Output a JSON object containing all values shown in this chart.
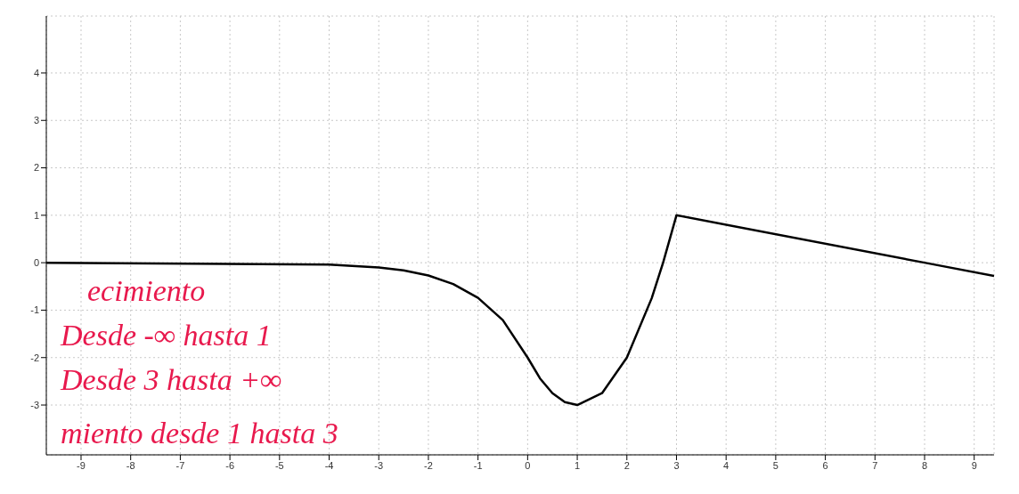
{
  "chart_data": {
    "type": "line",
    "x": [
      -9.7,
      -4,
      -3,
      -2.5,
      -2,
      -1.5,
      -1,
      -0.5,
      0,
      0.25,
      0.5,
      0.75,
      1,
      1.5,
      2,
      2.5,
      2.73,
      3,
      8,
      9.4
    ],
    "series": [
      {
        "color": "#000000",
        "values": [
          0,
          -0.04,
          -0.1,
          -0.16,
          -0.27,
          -0.45,
          -0.74,
          -1.21,
          -2,
          -2.44,
          -2.75,
          -2.94,
          -3,
          -2.75,
          -2,
          -0.75,
          0,
          1,
          0,
          -0.28
        ]
      }
    ],
    "xlim": [
      -9.7,
      9.4
    ],
    "xticks": [
      -9,
      -8,
      -7,
      -6,
      -5,
      -4,
      -3,
      -2,
      -1,
      0,
      1,
      2,
      3,
      4,
      5,
      6,
      7,
      8,
      9
    ],
    "ylim": [
      -4.05,
      5.2
    ],
    "yticks": [
      -3,
      -2,
      -1,
      0,
      1,
      2,
      3,
      4
    ],
    "grid": true,
    "marker": "none",
    "line_style": "solid",
    "annotations": [
      "ecimiento",
      "Desde -∞ hasta 1",
      "Desde 3 hasta +∞",
      "miento desde 1 hasta 3"
    ]
  }
}
